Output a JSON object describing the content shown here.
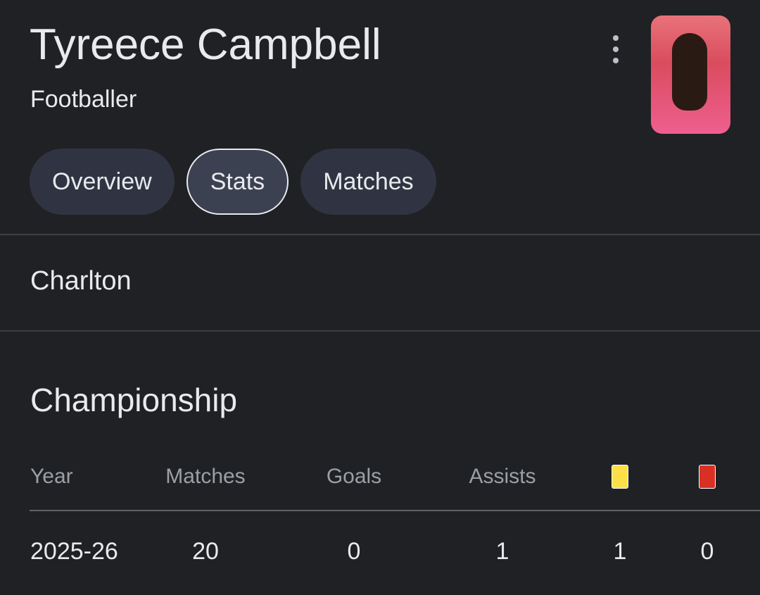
{
  "header": {
    "name": "Tyreece Campbell",
    "subtitle": "Footballer",
    "more_icon": "more-vert-icon"
  },
  "tabs": [
    {
      "label": "Overview"
    },
    {
      "label": "Stats",
      "active": true
    },
    {
      "label": "Matches"
    }
  ],
  "club": "Charlton",
  "competition": "Championship",
  "table": {
    "headers": [
      "Year",
      "Matches",
      "Goals",
      "Assists"
    ],
    "card_icons": {
      "yellow": "#fde047",
      "red": "#d93025"
    },
    "rows": [
      {
        "year": "2025-26",
        "matches": "20",
        "goals": "0",
        "assists": "1",
        "yellow": "1",
        "red": "0"
      }
    ]
  }
}
